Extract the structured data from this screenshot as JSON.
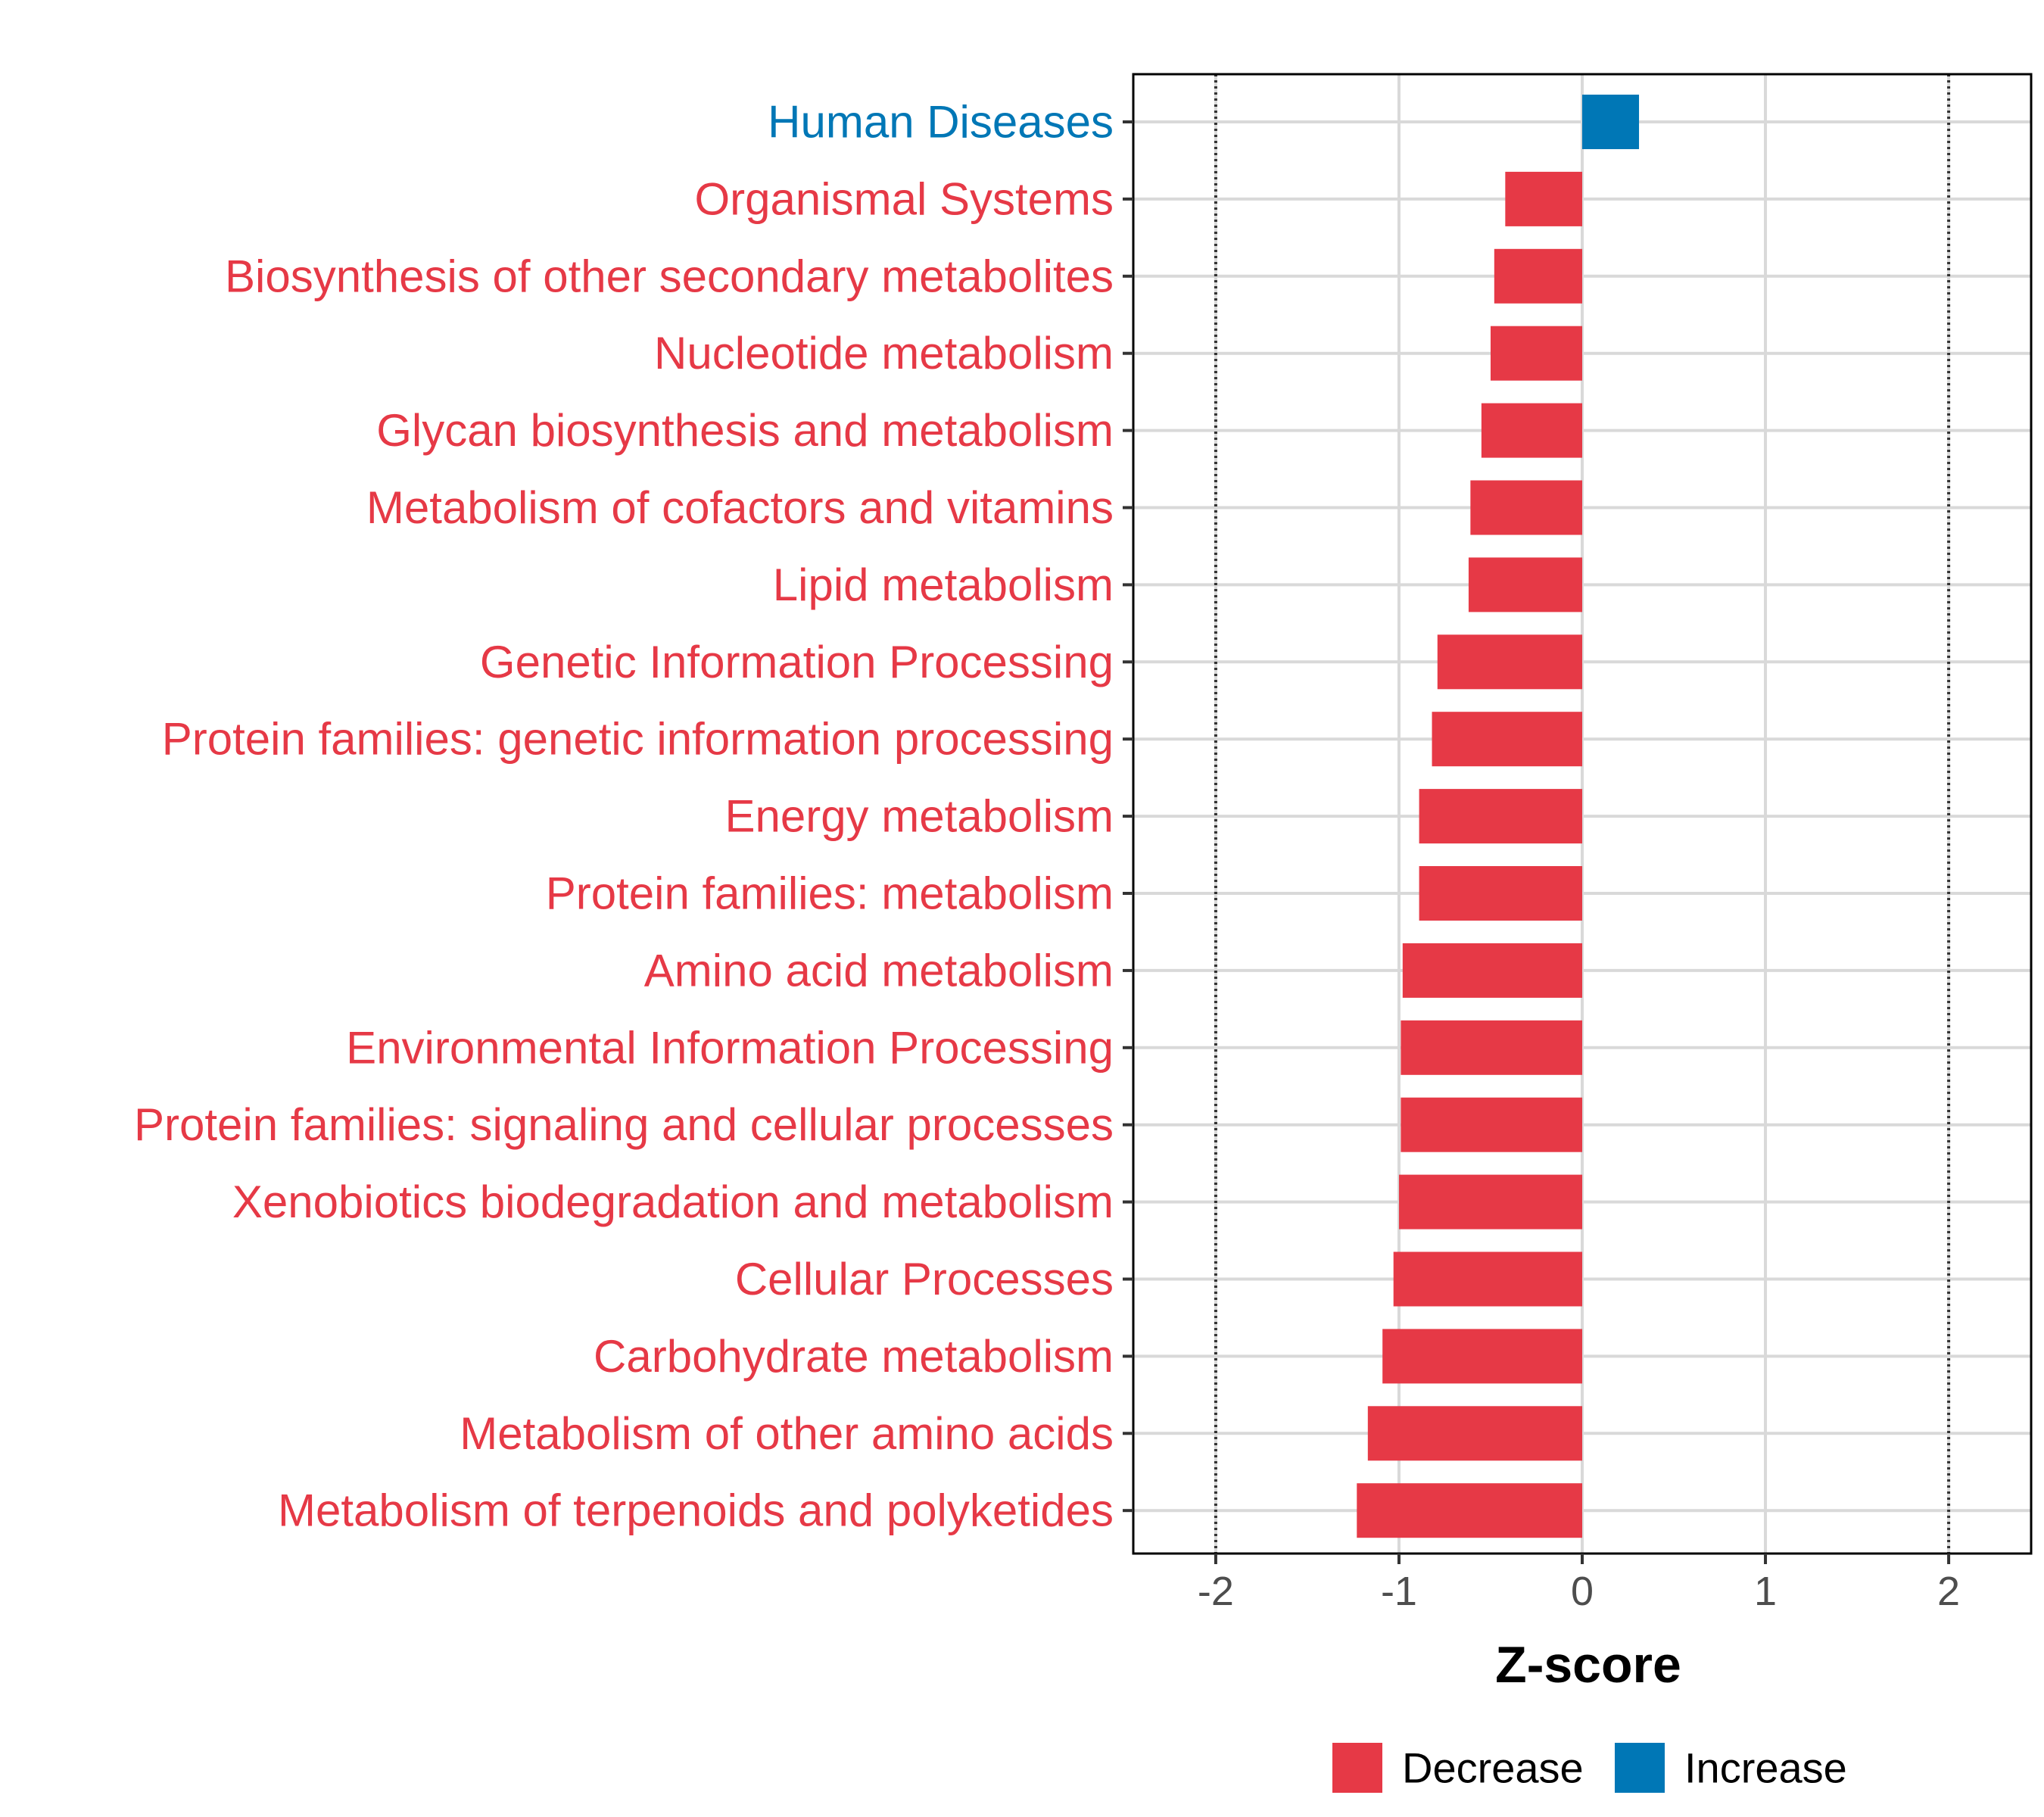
{
  "chart_data": {
    "type": "bar",
    "orientation": "horizontal",
    "xlabel": "Z-score",
    "xlim": [
      -2.45,
      2.45
    ],
    "xticks": [
      -2,
      -1,
      0,
      1,
      2
    ],
    "xtick_labels": [
      "-2",
      "-1",
      "0",
      "1",
      "2"
    ],
    "reference_lines": [
      -2,
      2
    ],
    "grid": true,
    "legend_position": "bottom",
    "legend": [
      {
        "label": "Decrease",
        "color": "#e63946"
      },
      {
        "label": "Increase",
        "color": "#0077b6"
      }
    ],
    "categories": [
      "Human Diseases",
      "Organismal Systems",
      "Biosynthesis of other secondary metabolites",
      "Nucleotide metabolism",
      "Glycan biosynthesis and metabolism",
      "Metabolism of cofactors and vitamins",
      "Lipid metabolism",
      "Genetic Information Processing",
      "Protein families: genetic information processing",
      "Energy metabolism",
      "Protein families: metabolism",
      "Amino acid metabolism",
      "Environmental Information Processing",
      "Protein families: signaling and cellular processes",
      "Xenobiotics biodegradation and metabolism",
      "Cellular Processes",
      "Carbohydrate metabolism",
      "Metabolism of other amino acids",
      "Metabolism of terpenoids and polyketides"
    ],
    "values": [
      0.31,
      -0.42,
      -0.48,
      -0.5,
      -0.55,
      -0.61,
      -0.62,
      -0.79,
      -0.82,
      -0.89,
      -0.89,
      -0.98,
      -0.99,
      -0.99,
      -1.0,
      -1.03,
      -1.09,
      -1.17,
      -1.23
    ],
    "colors": {
      "Decrease": "#e63946",
      "Increase": "#0077b6"
    }
  }
}
